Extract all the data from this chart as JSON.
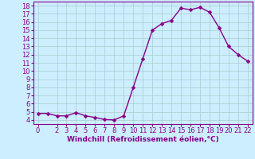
{
  "x": [
    0,
    1,
    2,
    3,
    4,
    5,
    6,
    7,
    8,
    9,
    10,
    11,
    12,
    13,
    14,
    15,
    16,
    17,
    18,
    19,
    20,
    21,
    22
  ],
  "y": [
    4.8,
    4.8,
    4.5,
    4.5,
    4.9,
    4.5,
    4.3,
    4.05,
    4.0,
    4.5,
    8.0,
    11.5,
    15.0,
    15.8,
    16.2,
    17.7,
    17.5,
    17.8,
    17.2,
    15.3,
    13.0,
    12.0,
    11.2
  ],
  "line_color": "#880088",
  "marker_color": "#880088",
  "bg_color": "#cceeff",
  "grid_color": "#aacccc",
  "xlabel": "Windchill (Refroidissement éolien,°C)",
  "xlim": [
    -0.5,
    22.5
  ],
  "ylim": [
    3.5,
    18.5
  ],
  "yticks": [
    4,
    5,
    6,
    7,
    8,
    9,
    10,
    11,
    12,
    13,
    14,
    15,
    16,
    17,
    18
  ],
  "xticks": [
    0,
    2,
    3,
    4,
    5,
    6,
    7,
    8,
    9,
    10,
    11,
    12,
    13,
    14,
    15,
    16,
    17,
    18,
    19,
    20,
    21,
    22
  ],
  "xlabel_fontsize": 6.5,
  "tick_fontsize": 6,
  "line_width": 1.0,
  "marker_size": 2.5
}
